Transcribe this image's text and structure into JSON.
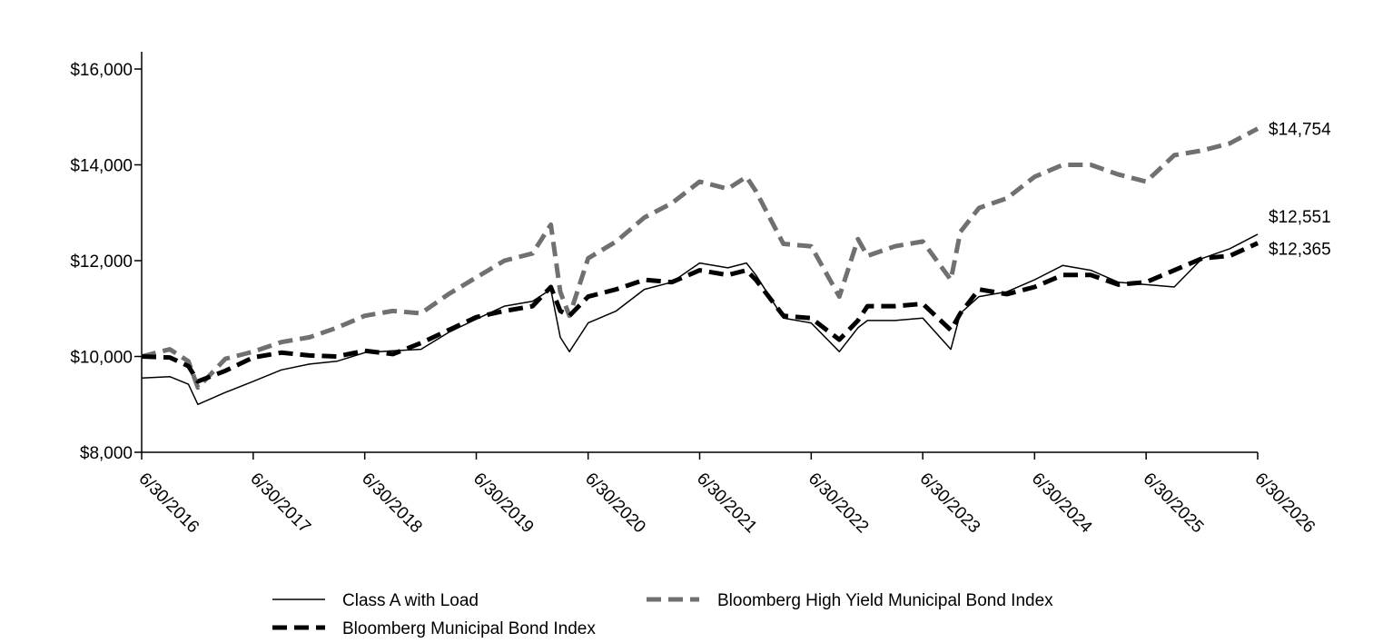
{
  "chart_data": {
    "type": "line",
    "title": "",
    "xlabel": "",
    "ylabel": "",
    "ylim": [
      8000,
      16000
    ],
    "y_ticks": [
      8000,
      10000,
      12000,
      14000,
      16000
    ],
    "y_tick_labels": [
      "$8,000",
      "$10,000",
      "$12,000",
      "$14,000",
      "$16,000"
    ],
    "x_range": [
      "6/30/2016",
      "6/30/2026"
    ],
    "x_ticks": [
      "6/30/2016",
      "6/30/2017",
      "6/30/2018",
      "6/30/2019",
      "6/30/2020",
      "6/30/2021",
      "6/30/2022",
      "6/30/2023",
      "6/30/2024",
      "6/30/2025",
      "6/30/2026"
    ],
    "grid": false,
    "legend_position": "bottom",
    "series": [
      {
        "name": "Class A with Load",
        "style": "solid-thin",
        "color": "#000000",
        "end_label": "$12,551",
        "points": [
          [
            "6/30/2016",
            9550
          ],
          [
            "9/30/2016",
            9580
          ],
          [
            "11/30/2016",
            9420
          ],
          [
            "12/31/2016",
            9000
          ],
          [
            "3/31/2017",
            9250
          ],
          [
            "6/30/2017",
            9480
          ],
          [
            "9/30/2017",
            9720
          ],
          [
            "12/31/2017",
            9840
          ],
          [
            "3/31/2018",
            9900
          ],
          [
            "6/30/2018",
            10080
          ],
          [
            "9/30/2018",
            10120
          ],
          [
            "12/31/2018",
            10150
          ],
          [
            "3/31/2019",
            10500
          ],
          [
            "6/30/2019",
            10780
          ],
          [
            "9/30/2019",
            11050
          ],
          [
            "12/31/2019",
            11150
          ],
          [
            "2/29/2020",
            11400
          ],
          [
            "3/31/2020",
            10400
          ],
          [
            "4/30/2020",
            10100
          ],
          [
            "6/30/2020",
            10700
          ],
          [
            "9/30/2020",
            10950
          ],
          [
            "12/31/2020",
            11400
          ],
          [
            "3/31/2021",
            11550
          ],
          [
            "6/30/2021",
            11950
          ],
          [
            "9/30/2021",
            11850
          ],
          [
            "11/30/2021",
            11950
          ],
          [
            "12/31/2021",
            11700
          ],
          [
            "3/31/2022",
            10800
          ],
          [
            "6/30/2022",
            10700
          ],
          [
            "9/30/2022",
            10100
          ],
          [
            "11/30/2022",
            10600
          ],
          [
            "12/31/2022",
            10750
          ],
          [
            "3/31/2023",
            10750
          ],
          [
            "6/30/2023",
            10800
          ],
          [
            "9/30/2023",
            10150
          ],
          [
            "10/31/2023",
            10900
          ],
          [
            "12/31/2023",
            11250
          ],
          [
            "3/31/2024",
            11350
          ],
          [
            "6/30/2024",
            11600
          ],
          [
            "9/30/2024",
            11900
          ],
          [
            "12/31/2024",
            11800
          ],
          [
            "3/31/2025",
            11550
          ],
          [
            "6/30/2025",
            11500
          ],
          [
            "9/30/2025",
            11450
          ],
          [
            "12/31/2025",
            12050
          ],
          [
            "3/31/2026",
            12250
          ],
          [
            "6/30/2026",
            12551
          ]
        ]
      },
      {
        "name": "Bloomberg Municipal Bond Index",
        "style": "dashed-thick",
        "color": "#000000",
        "end_label": "$12,365",
        "points": [
          [
            "6/30/2016",
            10000
          ],
          [
            "9/30/2016",
            9980
          ],
          [
            "11/30/2016",
            9800
          ],
          [
            "12/31/2016",
            9480
          ],
          [
            "3/31/2017",
            9700
          ],
          [
            "6/30/2017",
            9980
          ],
          [
            "9/30/2017",
            10080
          ],
          [
            "12/31/2017",
            10020
          ],
          [
            "3/31/2018",
            10000
          ],
          [
            "6/30/2018",
            10120
          ],
          [
            "9/30/2018",
            10050
          ],
          [
            "12/31/2018",
            10280
          ],
          [
            "3/31/2019",
            10550
          ],
          [
            "6/30/2019",
            10820
          ],
          [
            "9/30/2019",
            10950
          ],
          [
            "12/31/2019",
            11050
          ],
          [
            "2/29/2020",
            11450
          ],
          [
            "3/31/2020",
            10950
          ],
          [
            "4/30/2020",
            10850
          ],
          [
            "6/30/2020",
            11250
          ],
          [
            "9/30/2020",
            11400
          ],
          [
            "12/31/2020",
            11600
          ],
          [
            "3/31/2021",
            11550
          ],
          [
            "6/30/2021",
            11800
          ],
          [
            "9/30/2021",
            11700
          ],
          [
            "11/30/2021",
            11800
          ],
          [
            "12/31/2021",
            11600
          ],
          [
            "3/31/2022",
            10850
          ],
          [
            "6/30/2022",
            10800
          ],
          [
            "9/30/2022",
            10350
          ],
          [
            "11/30/2022",
            10750
          ],
          [
            "12/31/2022",
            11050
          ],
          [
            "3/31/2023",
            11050
          ],
          [
            "6/30/2023",
            11100
          ],
          [
            "9/30/2023",
            10550
          ],
          [
            "10/31/2023",
            10900
          ],
          [
            "12/31/2023",
            11400
          ],
          [
            "3/31/2024",
            11300
          ],
          [
            "6/30/2024",
            11450
          ],
          [
            "9/30/2024",
            11700
          ],
          [
            "12/31/2024",
            11700
          ],
          [
            "3/31/2025",
            11500
          ],
          [
            "6/30/2025",
            11550
          ],
          [
            "9/30/2025",
            11800
          ],
          [
            "12/31/2025",
            12050
          ],
          [
            "3/31/2026",
            12100
          ],
          [
            "6/30/2026",
            12365
          ]
        ]
      },
      {
        "name": "Bloomberg High Yield Municipal Bond Index",
        "style": "dashed-thick",
        "color": "#707070",
        "end_label": "$14,754",
        "points": [
          [
            "6/30/2016",
            10000
          ],
          [
            "9/30/2016",
            10150
          ],
          [
            "11/30/2016",
            9900
          ],
          [
            "12/31/2016",
            9350
          ],
          [
            "3/31/2017",
            9950
          ],
          [
            "6/30/2017",
            10100
          ],
          [
            "9/30/2017",
            10300
          ],
          [
            "12/31/2017",
            10400
          ],
          [
            "3/31/2018",
            10600
          ],
          [
            "6/30/2018",
            10850
          ],
          [
            "9/30/2018",
            10950
          ],
          [
            "12/31/2018",
            10900
          ],
          [
            "3/31/2019",
            11300
          ],
          [
            "6/30/2019",
            11650
          ],
          [
            "9/30/2019",
            12000
          ],
          [
            "12/31/2019",
            12150
          ],
          [
            "2/29/2020",
            12750
          ],
          [
            "3/31/2020",
            11350
          ],
          [
            "4/30/2020",
            10850
          ],
          [
            "6/30/2020",
            12050
          ],
          [
            "9/30/2020",
            12400
          ],
          [
            "12/31/2020",
            12900
          ],
          [
            "3/31/2021",
            13200
          ],
          [
            "6/30/2021",
            13650
          ],
          [
            "9/30/2021",
            13500
          ],
          [
            "11/30/2021",
            13750
          ],
          [
            "12/31/2021",
            13450
          ],
          [
            "3/31/2022",
            12350
          ],
          [
            "6/30/2022",
            12300
          ],
          [
            "9/30/2022",
            11250
          ],
          [
            "11/30/2022",
            12450
          ],
          [
            "12/31/2022",
            12100
          ],
          [
            "3/31/2023",
            12300
          ],
          [
            "6/30/2023",
            12400
          ],
          [
            "9/30/2023",
            11600
          ],
          [
            "10/31/2023",
            12600
          ],
          [
            "12/31/2023",
            13100
          ],
          [
            "3/31/2024",
            13300
          ],
          [
            "6/30/2024",
            13750
          ],
          [
            "9/30/2024",
            14000
          ],
          [
            "12/31/2024",
            14000
          ],
          [
            "3/31/2025",
            13800
          ],
          [
            "6/30/2025",
            13650
          ],
          [
            "9/30/2025",
            14200
          ],
          [
            "12/31/2025",
            14300
          ],
          [
            "3/31/2026",
            14450
          ],
          [
            "6/30/2026",
            14754
          ]
        ]
      }
    ]
  }
}
